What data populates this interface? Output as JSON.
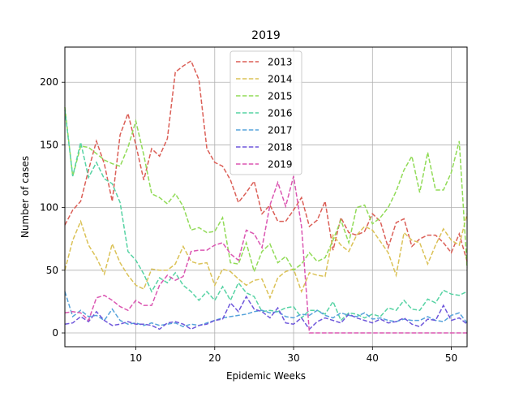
{
  "chart_data": {
    "type": "line",
    "title": "2019",
    "xlabel": "Epidemic Weeks",
    "ylabel": "Number of cases",
    "xlim": [
      1,
      52
    ],
    "ylim": [
      -11,
      228
    ],
    "xticks": [
      10,
      20,
      30,
      40,
      50
    ],
    "yticks": [
      0,
      50,
      100,
      150,
      200
    ],
    "grid": true,
    "legend_position": "top-center",
    "line_style": "dashed",
    "x": [
      1,
      2,
      3,
      4,
      5,
      6,
      7,
      8,
      9,
      10,
      11,
      12,
      13,
      14,
      15,
      16,
      17,
      18,
      19,
      20,
      21,
      22,
      23,
      24,
      25,
      26,
      27,
      28,
      29,
      30,
      31,
      32,
      33,
      34,
      35,
      36,
      37,
      38,
      39,
      40,
      41,
      42,
      43,
      44,
      45,
      46,
      47,
      48,
      49,
      50,
      51,
      52
    ],
    "series": [
      {
        "name": "2013",
        "color": "#db5f57",
        "values": [
          86,
          98,
          105,
          130,
          153,
          135,
          105,
          158,
          175,
          150,
          122,
          147,
          141,
          155,
          208,
          213,
          217,
          202,
          147,
          136,
          133,
          122,
          104,
          112,
          121,
          95,
          102,
          89,
          89,
          98,
          108,
          85,
          90,
          105,
          66,
          92,
          80,
          78,
          81,
          95,
          89,
          68,
          88,
          91,
          69,
          75,
          78,
          78,
          72,
          64,
          79,
          57
        ]
      },
      {
        "name": "2014",
        "color": "#dbc257",
        "values": [
          50,
          74,
          89,
          70,
          60,
          47,
          71,
          56,
          46,
          38,
          35,
          51,
          50,
          50,
          55,
          69,
          57,
          55,
          56,
          38,
          51,
          49,
          43,
          38,
          42,
          43,
          28,
          44,
          49,
          51,
          33,
          48,
          46,
          45,
          78,
          70,
          65,
          78,
          85,
          82,
          73,
          64,
          46,
          80,
          74,
          72,
          55,
          70,
          83,
          74,
          70,
          95
        ]
      },
      {
        "name": "2015",
        "color": "#91db57",
        "values": [
          180,
          125,
          149,
          148,
          143,
          138,
          135,
          133,
          148,
          169,
          142,
          111,
          108,
          103,
          111,
          101,
          82,
          84,
          80,
          81,
          92,
          56,
          55,
          72,
          49,
          65,
          71,
          56,
          61,
          50,
          55,
          64,
          57,
          60,
          74,
          90,
          72,
          100,
          102,
          87,
          92,
          100,
          113,
          130,
          141,
          112,
          144,
          114,
          114,
          128,
          153,
          52
        ]
      },
      {
        "name": "2016",
        "color": "#57d3a4",
        "values": [
          178,
          125,
          152,
          124,
          136,
          123,
          119,
          104,
          65,
          58,
          47,
          33,
          44,
          40,
          48,
          38,
          33,
          26,
          33,
          26,
          37,
          26,
          40,
          32,
          29,
          17,
          18,
          17,
          20,
          21,
          12,
          18,
          18,
          15,
          25,
          10,
          16,
          15,
          12,
          15,
          13,
          20,
          18,
          26,
          19,
          18,
          27,
          24,
          34,
          31,
          30,
          33
        ]
      },
      {
        "name": "2017",
        "color": "#57a3db",
        "values": [
          33,
          13,
          18,
          13,
          14,
          10,
          19,
          10,
          7,
          8,
          6,
          8,
          6,
          7,
          8,
          5,
          7,
          6,
          8,
          10,
          12,
          13,
          14,
          15,
          17,
          18,
          16,
          17,
          13,
          12,
          15,
          14,
          18,
          14,
          12,
          16,
          14,
          13,
          16,
          11,
          12,
          10,
          9,
          11,
          10,
          10,
          13,
          10,
          9,
          14,
          16,
          8
        ]
      },
      {
        "name": "2018",
        "color": "#6e57db",
        "values": [
          7,
          8,
          13,
          9,
          17,
          10,
          6,
          7,
          9,
          7,
          7,
          6,
          3,
          8,
          9,
          7,
          3,
          6,
          7,
          10,
          11,
          24,
          17,
          29,
          19,
          17,
          12,
          20,
          8,
          7,
          12,
          3,
          9,
          12,
          10,
          8,
          15,
          12,
          10,
          8,
          11,
          8,
          9,
          12,
          7,
          5,
          11,
          10,
          22,
          10,
          12,
          7
        ]
      },
      {
        "name": "2019",
        "color": "#db57b2",
        "values": [
          16,
          17,
          16,
          10,
          28,
          30,
          26,
          21,
          18,
          26,
          22,
          22,
          38,
          46,
          42,
          45,
          65,
          66,
          66,
          70,
          72,
          63,
          58,
          82,
          79,
          68,
          102,
          120,
          101,
          125,
          85,
          0,
          0,
          0,
          0,
          0,
          0,
          0,
          0,
          0,
          0,
          0,
          0,
          0,
          0,
          0,
          0,
          0,
          0,
          0,
          0,
          0
        ]
      }
    ]
  }
}
